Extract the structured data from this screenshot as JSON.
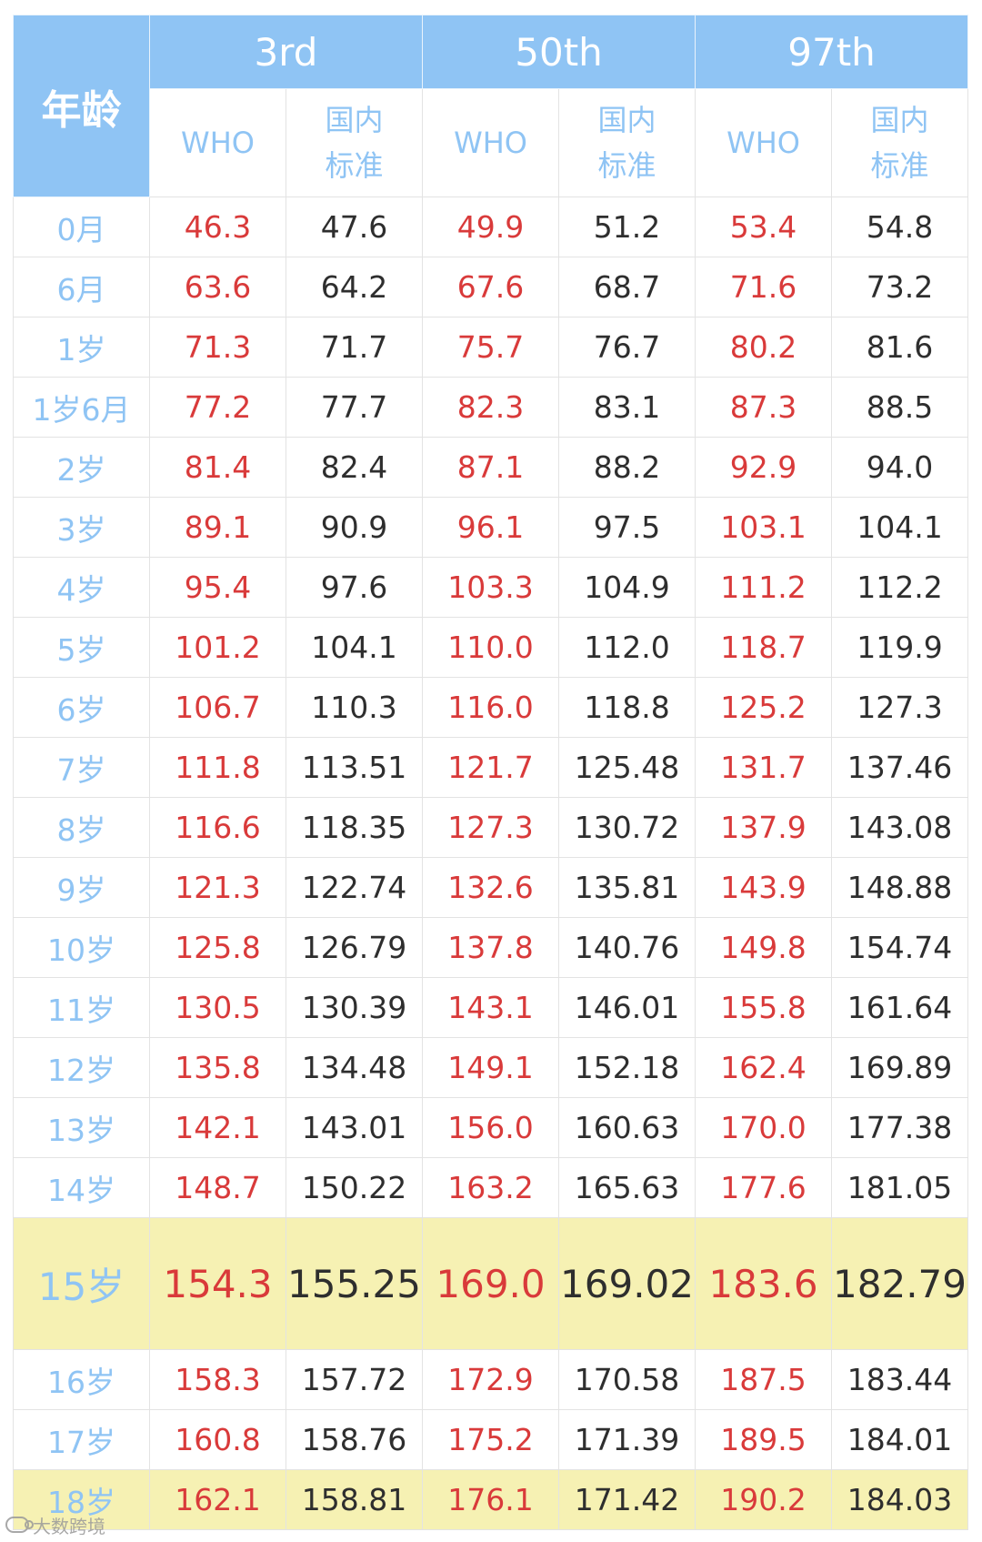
{
  "table": {
    "age_header": "年龄",
    "percentiles": [
      "3rd",
      "50th",
      "97th"
    ],
    "sub_headers": {
      "who": "WHO",
      "cn_line1": "国内",
      "cn_line2": "标准"
    },
    "highlight_color": "#f6f1b3",
    "header_color": "#8fc4f4",
    "who_color": "#d93a3a",
    "rows": [
      {
        "age": "0月",
        "v": [
          "46.3",
          "47.6",
          "49.9",
          "51.2",
          "53.4",
          "54.8"
        ]
      },
      {
        "age": "6月",
        "v": [
          "63.6",
          "64.2",
          "67.6",
          "68.7",
          "71.6",
          "73.2"
        ]
      },
      {
        "age": "1岁",
        "v": [
          "71.3",
          "71.7",
          "75.7",
          "76.7",
          "80.2",
          "81.6"
        ]
      },
      {
        "age": "1岁6月",
        "v": [
          "77.2",
          "77.7",
          "82.3",
          "83.1",
          "87.3",
          "88.5"
        ]
      },
      {
        "age": "2岁",
        "v": [
          "81.4",
          "82.4",
          "87.1",
          "88.2",
          "92.9",
          "94.0"
        ]
      },
      {
        "age": "3岁",
        "v": [
          "89.1",
          "90.9",
          "96.1",
          "97.5",
          "103.1",
          "104.1"
        ]
      },
      {
        "age": "4岁",
        "v": [
          "95.4",
          "97.6",
          "103.3",
          "104.9",
          "111.2",
          "112.2"
        ]
      },
      {
        "age": "5岁",
        "v": [
          "101.2",
          "104.1",
          "110.0",
          "112.0",
          "118.7",
          "119.9"
        ]
      },
      {
        "age": "6岁",
        "v": [
          "106.7",
          "110.3",
          "116.0",
          "118.8",
          "125.2",
          "127.3"
        ]
      },
      {
        "age": "7岁",
        "v": [
          "111.8",
          "113.51",
          "121.7",
          "125.48",
          "131.7",
          "137.46"
        ]
      },
      {
        "age": "8岁",
        "v": [
          "116.6",
          "118.35",
          "127.3",
          "130.72",
          "137.9",
          "143.08"
        ]
      },
      {
        "age": "9岁",
        "v": [
          "121.3",
          "122.74",
          "132.6",
          "135.81",
          "143.9",
          "148.88"
        ]
      },
      {
        "age": "10岁",
        "v": [
          "125.8",
          "126.79",
          "137.8",
          "140.76",
          "149.8",
          "154.74"
        ]
      },
      {
        "age": "11岁",
        "v": [
          "130.5",
          "130.39",
          "143.1",
          "146.01",
          "155.8",
          "161.64"
        ]
      },
      {
        "age": "12岁",
        "v": [
          "135.8",
          "134.48",
          "149.1",
          "152.18",
          "162.4",
          "169.89"
        ]
      },
      {
        "age": "13岁",
        "v": [
          "142.1",
          "143.01",
          "156.0",
          "160.63",
          "170.0",
          "177.38"
        ]
      },
      {
        "age": "14岁",
        "v": [
          "148.7",
          "150.22",
          "163.2",
          "165.63",
          "177.6",
          "181.05"
        ]
      },
      {
        "age": "15岁",
        "v": [
          "154.3",
          "155.25",
          "169.0",
          "169.02",
          "183.6",
          "182.79"
        ],
        "highlight": true,
        "large": true
      },
      {
        "age": "16岁",
        "v": [
          "158.3",
          "157.72",
          "172.9",
          "170.58",
          "187.5",
          "183.44"
        ]
      },
      {
        "age": "17岁",
        "v": [
          "160.8",
          "158.76",
          "175.2",
          "171.39",
          "189.5",
          "184.01"
        ]
      },
      {
        "age": "18岁",
        "v": [
          "162.1",
          "158.81",
          "176.1",
          "171.42",
          "190.2",
          "184.03"
        ],
        "highlight": true
      }
    ]
  },
  "watermark": {
    "text": "大数跨境",
    "icon": "brand-logo-icon"
  }
}
